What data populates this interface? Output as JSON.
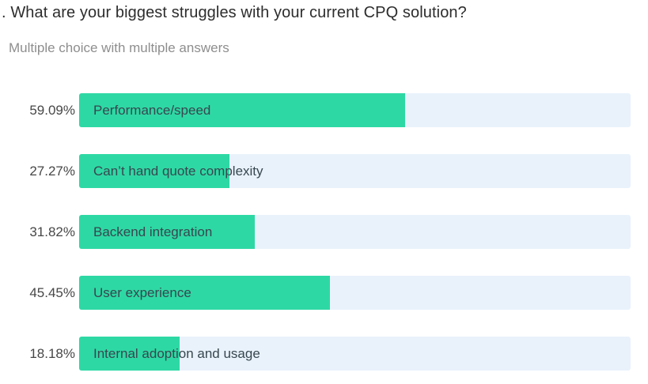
{
  "header": {
    "title": ". What are your biggest struggles with your current CPQ solution?",
    "subtitle": "Multiple choice with multiple answers"
  },
  "chart_data": {
    "type": "bar",
    "orientation": "horizontal",
    "title": "What are your biggest struggles with your current CPQ solution?",
    "subtitle": "Multiple choice with multiple answers",
    "categories": [
      "Performance/speed",
      "Can’t hand quote complexity",
      "Backend integration",
      "User experience",
      "Internal adoption and usage"
    ],
    "values": [
      59.09,
      27.27,
      31.82,
      45.45,
      18.18
    ],
    "value_labels": [
      "59.09%",
      "27.27%",
      "31.82%",
      "45.45%",
      "18.18%"
    ],
    "xlim": [
      0,
      100
    ],
    "grid": false,
    "legend": "none",
    "bar_color": "#2ed8a4",
    "track_color": "#e9f2fb"
  },
  "colors": {
    "background": "#ffffff",
    "title_text": "#2d2d2d",
    "subtitle_text": "#8e8e8e",
    "value_label_text": "#474747",
    "category_label_text": "#37474f"
  }
}
